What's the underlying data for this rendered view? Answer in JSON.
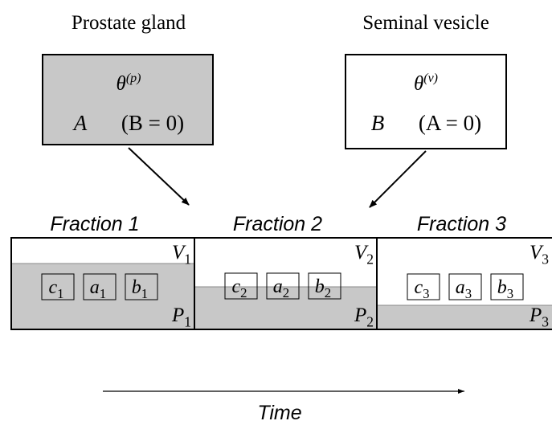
{
  "organs": [
    {
      "name": "Prostate gland",
      "symbol": "θ",
      "sup": "(p)",
      "effect": "A",
      "condition": "(B = 0)"
    },
    {
      "name": "Seminal vesicle",
      "symbol": "θ",
      "sup": "(v)",
      "effect": "B",
      "condition": "(A = 0)"
    }
  ],
  "fractions": [
    {
      "title": "Fraction 1",
      "top": {
        "base": "V",
        "sub": "1"
      },
      "bottom": {
        "base": "P",
        "sub": "1"
      },
      "boxes": [
        {
          "base": "c",
          "sub": "1"
        },
        {
          "base": "a",
          "sub": "1"
        },
        {
          "base": "b",
          "sub": "1"
        }
      ]
    },
    {
      "title": "Fraction 2",
      "top": {
        "base": "V",
        "sub": "2"
      },
      "bottom": {
        "base": "P",
        "sub": "2"
      },
      "boxes": [
        {
          "base": "c",
          "sub": "2"
        },
        {
          "base": "a",
          "sub": "2"
        },
        {
          "base": "b",
          "sub": "2"
        }
      ]
    },
    {
      "title": "Fraction 3",
      "top": {
        "base": "V",
        "sub": "3"
      },
      "bottom": {
        "base": "P",
        "sub": "3"
      },
      "boxes": [
        {
          "base": "c",
          "sub": "3"
        },
        {
          "base": "a",
          "sub": "3"
        },
        {
          "base": "b",
          "sub": "3"
        }
      ]
    }
  ],
  "axis": {
    "label": "Time"
  }
}
